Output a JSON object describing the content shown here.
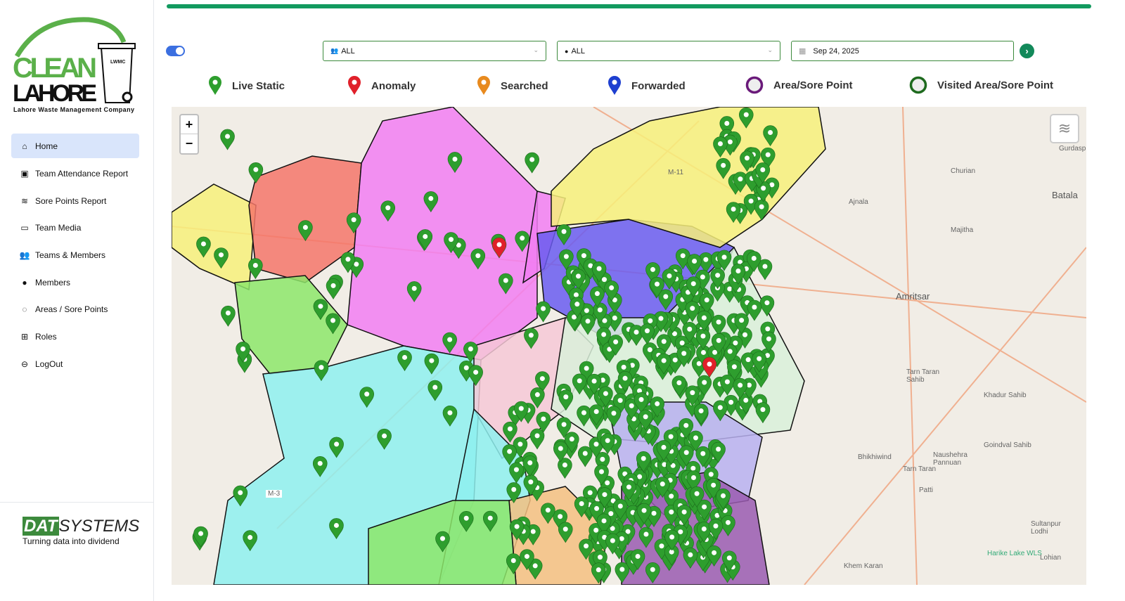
{
  "logo": {
    "line1": "CLEAN",
    "line2": "LAHORE",
    "bin_label": "LWMC",
    "tagline": "Lahore Waste Management Company"
  },
  "sidebar": {
    "items": [
      {
        "label": "Home",
        "icon": "home-icon",
        "active": true
      },
      {
        "label": "Team Attendance Report",
        "icon": "calendar-check-icon"
      },
      {
        "label": "Sore Points Report",
        "icon": "layers-icon"
      },
      {
        "label": "Team Media",
        "icon": "tv-icon"
      },
      {
        "label": "Teams & Members",
        "icon": "users-icon"
      },
      {
        "label": "Members",
        "icon": "user-icon"
      },
      {
        "label": "Areas / Sore Points",
        "icon": "dashed-circle-icon"
      },
      {
        "label": "Roles",
        "icon": "robot-icon"
      },
      {
        "label": "LogOut",
        "icon": "logout-icon"
      }
    ]
  },
  "footer": {
    "brand_a": "DAT",
    "brand_b": "SYSTEMS",
    "tagline": "Turning data into dividend"
  },
  "filters": {
    "team": "ALL",
    "member": "ALL",
    "date": "Sep 24, 2025",
    "toggle_on": true
  },
  "legend": [
    {
      "label": "Live Static",
      "color": "#2e9e2e",
      "shape": "pin"
    },
    {
      "label": "Anomaly",
      "color": "#e0202a",
      "shape": "pin"
    },
    {
      "label": "Searched",
      "color": "#e88a1e",
      "shape": "pin"
    },
    {
      "label": "Forwarded",
      "color": "#1e3fd0",
      "shape": "pin"
    },
    {
      "label": "Area/Sore Point",
      "color": "#6a1a7a",
      "shape": "ring"
    },
    {
      "label": "Visited Area/Sore Point",
      "color": "#1e6a1e",
      "shape": "ring"
    }
  ],
  "map": {
    "zoom_in": "+",
    "zoom_out": "−",
    "places": [
      "Amritsar",
      "Ajnala",
      "Majitha",
      "Churian",
      "Batala",
      "Gurdaspur",
      "Tarn Taran Sahib",
      "Khadur Sahib",
      "Bhikhiwind",
      "Tarn Taran",
      "Patti",
      "Khem Karan",
      "Goindval Sahib",
      "Naushehra Pannuan",
      "Sultanpur Lodhi",
      "Harike Lake WLS",
      "Lohian",
      "M-3",
      "M-11"
    ]
  }
}
